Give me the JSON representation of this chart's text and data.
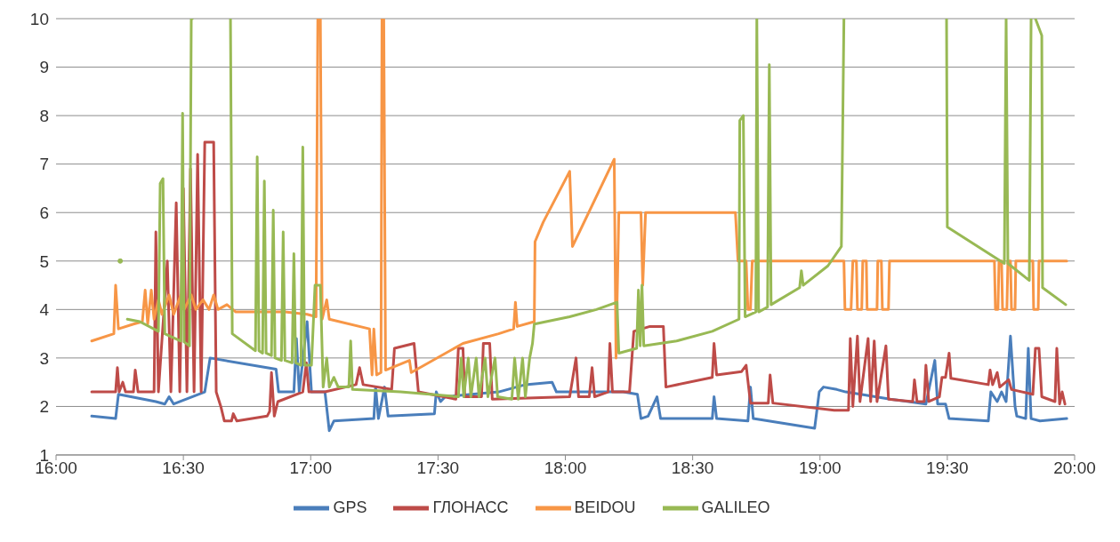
{
  "chart_data": {
    "type": "line",
    "xlim": [
      16,
      20
    ],
    "xticks": [
      {
        "value": 16,
        "label": "16:00"
      },
      {
        "value": 16.5,
        "label": "16:30"
      },
      {
        "value": 17,
        "label": "17:00"
      },
      {
        "value": 17.5,
        "label": "17:30"
      },
      {
        "value": 18,
        "label": "18:00"
      },
      {
        "value": 18.5,
        "label": "18:30"
      },
      {
        "value": 19,
        "label": "19:00"
      },
      {
        "value": 19.5,
        "label": "19:30"
      },
      {
        "value": 20,
        "label": "20:00"
      }
    ],
    "ylim": [
      1,
      10
    ],
    "yticks": [
      1,
      2,
      3,
      4,
      5,
      6,
      7,
      8,
      9,
      10
    ],
    "grid": "y",
    "legend": "bottom",
    "marker": "none",
    "line_style": "solid",
    "series": [
      {
        "name": "GPS",
        "color": "#4a7ebb",
        "x": [
          16.14,
          16.234,
          16.245,
          16.392,
          16.427,
          16.444,
          16.462,
          16.584,
          16.605,
          16.864,
          16.874,
          16.934,
          16.944,
          16.955,
          16.986,
          17.003,
          17.056,
          17.073,
          17.091,
          17.248,
          17.255,
          17.266,
          17.29,
          17.304,
          17.486,
          17.493,
          17.51,
          17.528,
          17.738,
          17.843,
          17.948,
          17.965,
          18.227,
          18.283,
          18.297,
          18.325,
          18.36,
          18.374,
          18.577,
          18.584,
          18.594,
          18.717,
          18.727,
          18.738,
          18.979,
          18.997,
          19.014,
          19.066,
          19.101,
          19.276,
          19.416,
          19.451,
          19.462,
          19.493,
          19.507,
          19.661,
          19.671,
          19.696,
          19.713,
          19.731,
          19.748,
          19.766,
          19.773,
          19.808,
          19.818,
          19.829,
          19.864,
          19.969
        ],
        "values": [
          1.8,
          1.75,
          2.25,
          2.1,
          2.05,
          2.2,
          2.05,
          2.3,
          3.0,
          2.77,
          2.3,
          2.3,
          3.4,
          2.3,
          3.75,
          2.3,
          2.3,
          1.5,
          1.7,
          1.75,
          2.4,
          1.75,
          2.4,
          1.8,
          1.85,
          2.3,
          2.1,
          2.2,
          2.3,
          2.45,
          2.5,
          2.3,
          2.3,
          2.25,
          1.75,
          1.8,
          2.2,
          1.75,
          1.75,
          2.2,
          1.75,
          1.7,
          2.4,
          1.75,
          1.55,
          2.3,
          2.4,
          2.35,
          2.3,
          2.15,
          2.05,
          2.95,
          2.05,
          2.05,
          1.75,
          1.7,
          2.3,
          2.1,
          2.3,
          2.1,
          3.45,
          2.0,
          1.8,
          1.75,
          3.2,
          1.75,
          1.7,
          1.75
        ]
      },
      {
        "name": "ГЛОНАСС",
        "color": "#be4b48",
        "x": [
          16.14,
          16.234,
          16.241,
          16.248,
          16.262,
          16.273,
          16.304,
          16.311,
          16.322,
          16.385,
          16.392,
          16.402,
          16.437,
          16.451,
          16.472,
          16.486,
          16.5,
          16.514,
          16.528,
          16.542,
          16.556,
          16.57,
          16.584,
          16.619,
          16.629,
          16.647,
          16.661,
          16.689,
          16.696,
          16.71,
          16.829,
          16.839,
          16.846,
          16.857,
          16.871,
          16.969,
          16.983,
          16.993,
          17.056,
          17.178,
          17.192,
          17.206,
          17.318,
          17.329,
          17.406,
          17.423,
          17.57,
          17.58,
          17.598,
          17.605,
          17.671,
          17.678,
          17.703,
          17.713,
          18.017,
          18.042,
          18.052,
          18.094,
          18.105,
          18.115,
          18.168,
          18.175,
          18.185,
          18.252,
          18.269,
          18.332,
          18.385,
          18.395,
          18.577,
          18.584,
          18.594,
          18.692,
          18.71,
          18.727,
          18.797,
          18.804,
          18.815,
          19.056,
          19.112,
          19.119,
          19.129,
          19.147,
          19.157,
          19.189,
          19.199,
          19.213,
          19.224,
          19.259,
          19.269,
          19.364,
          19.371,
          19.381,
          19.409,
          19.416,
          19.427,
          19.469,
          19.479,
          19.493,
          19.507,
          19.514,
          19.661,
          19.668,
          19.678,
          19.696,
          19.706,
          19.741,
          19.752,
          19.836,
          19.846,
          19.86,
          19.871,
          19.923,
          19.93,
          19.941,
          19.951,
          19.962
        ],
        "values": [
          2.3,
          2.3,
          2.8,
          2.3,
          2.5,
          2.3,
          2.3,
          2.75,
          2.3,
          2.3,
          5.6,
          2.3,
          5.0,
          2.3,
          6.2,
          2.3,
          6.5,
          2.3,
          6.9,
          2.3,
          7.2,
          2.3,
          7.45,
          7.45,
          2.3,
          2.0,
          1.7,
          1.7,
          1.85,
          1.7,
          1.8,
          1.9,
          2.7,
          1.8,
          2.1,
          2.3,
          2.9,
          2.3,
          2.3,
          2.45,
          2.8,
          2.45,
          2.35,
          3.2,
          3.3,
          2.3,
          2.15,
          3.2,
          3.2,
          2.2,
          2.2,
          3.3,
          3.3,
          2.15,
          2.2,
          3.0,
          2.2,
          2.2,
          2.8,
          2.2,
          2.3,
          3.3,
          2.3,
          2.3,
          3.55,
          3.65,
          3.65,
          2.4,
          2.6,
          3.3,
          2.65,
          2.72,
          2.85,
          2.07,
          2.07,
          2.65,
          2.07,
          1.92,
          1.92,
          3.4,
          2.0,
          3.45,
          2.1,
          3.4,
          2.1,
          3.35,
          2.1,
          3.25,
          2.15,
          2.1,
          2.55,
          2.1,
          2.1,
          2.85,
          2.1,
          2.2,
          2.6,
          2.6,
          3.1,
          2.58,
          2.45,
          2.75,
          2.45,
          2.7,
          2.4,
          2.55,
          2.35,
          2.25,
          3.2,
          3.2,
          2.2,
          2.1,
          3.2,
          2.05,
          2.3,
          2.05
        ]
      },
      {
        "name": "BEIDOU",
        "color": "#f79646",
        "x": [
          16.14,
          16.227,
          16.234,
          16.245,
          16.304,
          16.339,
          16.35,
          16.36,
          16.374,
          16.385,
          16.402,
          16.416,
          16.444,
          16.462,
          16.49,
          16.503,
          16.531,
          16.549,
          16.577,
          16.601,
          16.619,
          16.636,
          16.671,
          16.706,
          16.899,
          16.986,
          17.021,
          17.028,
          17.038,
          17.045,
          17.063,
          17.073,
          17.231,
          17.241,
          17.248,
          17.259,
          17.276,
          17.28,
          17.287,
          17.294,
          17.388,
          17.395,
          17.598,
          17.738,
          17.797,
          17.804,
          17.811,
          17.878,
          17.881,
          17.913,
          18.017,
          18.028,
          18.192,
          18.199,
          18.21,
          18.297,
          18.304,
          18.315,
          18.668,
          18.678,
          18.71,
          18.717,
          18.727,
          18.734,
          19.094,
          19.098,
          19.122,
          19.129,
          19.143,
          19.147,
          19.164,
          19.168,
          19.182,
          19.185,
          19.224,
          19.227,
          19.241,
          19.245,
          19.269,
          19.273,
          19.685,
          19.689,
          19.699,
          19.703,
          19.713,
          19.717,
          19.734,
          19.738,
          19.748,
          19.752,
          19.766,
          19.769,
          19.836,
          19.839,
          19.857,
          19.86,
          19.969
        ],
        "values": [
          3.35,
          3.5,
          4.5,
          3.6,
          3.7,
          3.75,
          4.4,
          3.7,
          4.4,
          3.8,
          4.2,
          3.9,
          4.3,
          3.9,
          4.3,
          4.0,
          4.3,
          4.0,
          4.2,
          4.0,
          4.3,
          4.0,
          4.1,
          3.95,
          3.95,
          3.9,
          3.85,
          10,
          10,
          3.8,
          4.2,
          3.8,
          3.6,
          2.65,
          3.6,
          2.65,
          2.7,
          10,
          10,
          2.75,
          2.95,
          2.7,
          3.3,
          3.5,
          3.6,
          4.15,
          3.65,
          3.75,
          5.4,
          5.8,
          6.85,
          5.3,
          7.1,
          3.0,
          6.0,
          6.0,
          4.5,
          6.0,
          6.0,
          5.0,
          5.0,
          4.0,
          4.0,
          5.0,
          5.0,
          4.0,
          4.0,
          5.0,
          5.0,
          4.0,
          4.0,
          5.0,
          5.0,
          4.0,
          4.0,
          5.0,
          5.0,
          4.0,
          4.0,
          5.0,
          5.0,
          4.0,
          4.0,
          5.0,
          5.0,
          4.0,
          4.0,
          5.0,
          5.0,
          4.0,
          4.0,
          5.0,
          5.0,
          4.0,
          4.0,
          5.0,
          5.0
        ]
      },
      {
        "name": "GALILEO",
        "color": "#98b954",
        "x": [
          16.252,
          16.266,
          16.28,
          16.329,
          16.402,
          16.409,
          16.42,
          16.427,
          16.49,
          16.497,
          16.503,
          16.524,
          16.531,
          16.535,
          16.538,
          16.682,
          16.685,
          16.692,
          16.783,
          16.79,
          16.797,
          16.811,
          16.818,
          16.825,
          16.846,
          16.853,
          16.86,
          16.885,
          16.892,
          16.899,
          16.927,
          16.934,
          16.941,
          16.962,
          16.969,
          16.976,
          17.003,
          17.017,
          17.038,
          17.049,
          17.063,
          17.073,
          17.091,
          17.108,
          17.15,
          17.157,
          17.164,
          17.353,
          17.58,
          17.591,
          17.601,
          17.619,
          17.629,
          17.65,
          17.661,
          17.685,
          17.696,
          17.724,
          17.734,
          17.79,
          17.801,
          17.815,
          17.832,
          17.843,
          17.86,
          17.871,
          17.878,
          18.017,
          18.122,
          18.203,
          18.21,
          18.28,
          18.287,
          18.294,
          18.301,
          18.308,
          18.437,
          18.577,
          18.682,
          18.685,
          18.699,
          18.706,
          18.748,
          18.752,
          18.759,
          18.794,
          18.801,
          18.808,
          18.92,
          18.927,
          18.934,
          19.031,
          19.084,
          19.094,
          19.098,
          19.493,
          19.497,
          19.5,
          19.724,
          19.731,
          19.738,
          19.822,
          19.829,
          19.832,
          19.843,
          19.846,
          19.871,
          19.874,
          19.965
        ],
        "values": [
          5.0,
          null,
          3.8,
          3.75,
          3.55,
          6.6,
          6.7,
          3.5,
          3.35,
          8.05,
          3.33,
          3.25,
          10,
          10,
          null,
          null,
          10,
          3.5,
          3.15,
          7.15,
          3.15,
          3.1,
          6.65,
          3.1,
          3.05,
          6.05,
          3.0,
          2.95,
          5.6,
          2.95,
          2.9,
          5.15,
          2.9,
          2.85,
          7.35,
          2.85,
          2.85,
          4.5,
          4.5,
          2.4,
          3.0,
          2.4,
          2.6,
          2.4,
          2.4,
          3.35,
          2.35,
          2.3,
          2.2,
          3.0,
          2.2,
          3.0,
          2.2,
          3.0,
          2.2,
          3.0,
          2.2,
          3.0,
          2.2,
          2.15,
          3.0,
          2.15,
          3.0,
          2.2,
          3.0,
          3.3,
          3.7,
          3.85,
          4.0,
          4.15,
          3.1,
          3.2,
          4.4,
          3.25,
          4.5,
          3.25,
          3.35,
          3.55,
          3.8,
          7.9,
          8.0,
          3.85,
          3.95,
          10,
          3.95,
          4.05,
          9.05,
          4.1,
          4.45,
          4.8,
          4.5,
          4.9,
          5.3,
          10,
          null,
          null,
          10,
          5.7,
          4.95,
          10,
          4.95,
          4.6,
          10,
          null,
          null,
          10,
          9.65,
          4.45,
          4.1
        ]
      }
    ]
  }
}
